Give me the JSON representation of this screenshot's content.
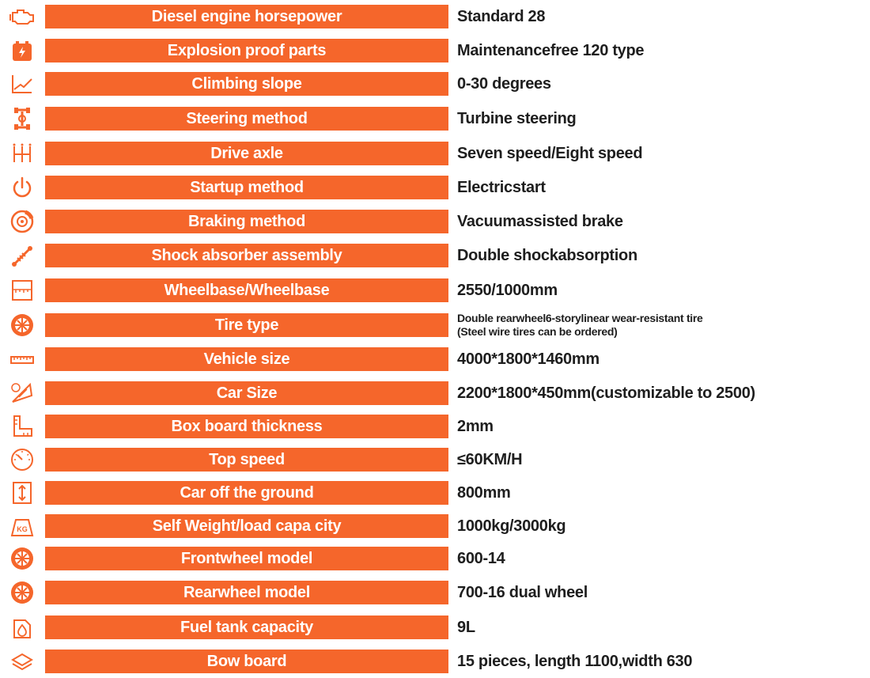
{
  "colors": {
    "accent": "#f5662b",
    "icon": "#f5662b",
    "text": "#1e1e1e"
  },
  "specs": [
    {
      "icon": "engine-icon",
      "label": "Diesel engine horsepower",
      "value": "Standard 28"
    },
    {
      "icon": "battery-icon",
      "label": "Explosion proof parts",
      "value": "Maintenancefree 120 type"
    },
    {
      "icon": "slope-chart-icon",
      "label": "Climbing slope",
      "value": "0-30 degrees"
    },
    {
      "icon": "steering-axle-icon",
      "label": "Steering method",
      "value": "Turbine steering"
    },
    {
      "icon": "gearbox-icon",
      "label": "Drive axle",
      "value": "Seven speed/Eight speed"
    },
    {
      "icon": "power-icon",
      "label": "Startup method",
      "value": "Electricstart"
    },
    {
      "icon": "brake-disc-icon",
      "label": "Braking method",
      "value": "Vacuumassisted brake"
    },
    {
      "icon": "shock-absorber-icon",
      "label": "Shock absorber assembly",
      "value": "Double shockabsorption"
    },
    {
      "icon": "wheelbase-icon",
      "label": "Wheelbase/Wheelbase",
      "value": "2550/1000mm"
    },
    {
      "icon": "tire-icon",
      "label": "Tire type",
      "value": "Double rearwheel6-storylinear wear-resistant tire",
      "value2": "(Steel wire tires can be ordered)"
    },
    {
      "icon": "ruler-icon",
      "label": "Vehicle size",
      "value": "4000*1800*1460mm"
    },
    {
      "icon": "set-square-icon",
      "label": "Car Size",
      "value": "2200*1800*450mm(customizable to 2500)"
    },
    {
      "icon": "l-ruler-icon",
      "label": "Box board thickness",
      "value": "2mm"
    },
    {
      "icon": "speedometer-icon",
      "label": "Top speed",
      "value": "≤60KM/H"
    },
    {
      "icon": "height-icon",
      "label": "Car off the ground",
      "value": "800mm"
    },
    {
      "icon": "weight-kg-icon",
      "label": "Self  Weight/load capa city",
      "value": "1000kg/3000kg"
    },
    {
      "icon": "wheel-icon",
      "label": "Frontwheel model",
      "value": "600-14"
    },
    {
      "icon": "wheel-icon",
      "label": "Rearwheel model",
      "value": "700-16 dual wheel"
    },
    {
      "icon": "fuel-tank-icon",
      "label": "Fuel tank capacity",
      "value": "9L"
    },
    {
      "icon": "layers-icon",
      "label": "Bow board",
      "value": "15 pieces, length 1100,width 630"
    }
  ]
}
